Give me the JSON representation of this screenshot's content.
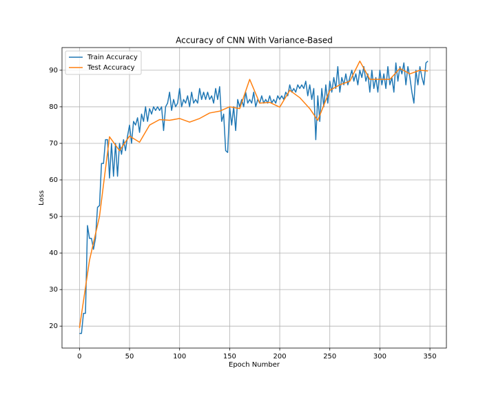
{
  "chart_data": {
    "type": "line",
    "title": "Accuracy of CNN With Variance-Based",
    "x_label": "Epoch Number",
    "y_label": "Loss",
    "xlim": [
      -17.45,
      366.45
    ],
    "ylim": [
      14,
      96.2
    ],
    "xticks": [
      0,
      50,
      100,
      150,
      200,
      250,
      300,
      350
    ],
    "yticks": [
      20,
      30,
      40,
      50,
      60,
      70,
      80,
      90
    ],
    "grid": true,
    "legend": "upper left",
    "series": [
      {
        "name": "Train Accuracy",
        "color": "#1f77b4",
        "x": [
          0,
          2,
          4,
          6,
          8,
          10,
          12,
          14,
          16,
          18,
          20,
          22,
          24,
          26,
          28,
          30,
          32,
          34,
          36,
          38,
          40,
          42,
          44,
          46,
          48,
          50,
          52,
          54,
          56,
          58,
          60,
          62,
          64,
          66,
          68,
          70,
          72,
          74,
          76,
          78,
          80,
          82,
          84,
          86,
          88,
          90,
          92,
          94,
          96,
          98,
          100,
          102,
          104,
          106,
          108,
          110,
          112,
          114,
          116,
          118,
          120,
          122,
          124,
          126,
          128,
          130,
          132,
          134,
          136,
          138,
          140,
          142,
          144,
          146,
          148,
          150,
          152,
          154,
          156,
          158,
          160,
          162,
          164,
          166,
          168,
          170,
          172,
          174,
          176,
          178,
          180,
          182,
          184,
          186,
          188,
          190,
          192,
          194,
          196,
          198,
          200,
          202,
          204,
          206,
          208,
          210,
          212,
          214,
          216,
          218,
          220,
          222,
          224,
          226,
          228,
          230,
          232,
          234,
          236,
          238,
          240,
          242,
          244,
          246,
          248,
          250,
          252,
          254,
          256,
          258,
          260,
          262,
          264,
          266,
          268,
          270,
          272,
          274,
          276,
          278,
          280,
          282,
          284,
          286,
          288,
          290,
          292,
          294,
          296,
          298,
          300,
          302,
          304,
          306,
          308,
          310,
          312,
          314,
          316,
          318,
          320,
          322,
          324,
          326,
          328,
          330,
          332,
          334,
          336,
          338,
          340,
          342,
          344,
          346,
          348
        ],
        "values": [
          18,
          18,
          23.5,
          23.5,
          47.5,
          44,
          44,
          41,
          44,
          52.5,
          53,
          64.5,
          64.5,
          71,
          71,
          60.5,
          70,
          61,
          70,
          61,
          70,
          67,
          71,
          68,
          72,
          75,
          70,
          76,
          75,
          77,
          73,
          78,
          76,
          80,
          76,
          79.5,
          78,
          80,
          79,
          80,
          79,
          80,
          73.5,
          80,
          81,
          84,
          79,
          82,
          80,
          81,
          85,
          80,
          82,
          81,
          83,
          80,
          84,
          81,
          82,
          81,
          85,
          82,
          84,
          82,
          84,
          82,
          83,
          81,
          85,
          82,
          85.5,
          76,
          78,
          68,
          67.5,
          80,
          75,
          80,
          73.5,
          82,
          80,
          82,
          80,
          84,
          81,
          82,
          81,
          84,
          80,
          82,
          81,
          83,
          81,
          82,
          81,
          83,
          81,
          82,
          81,
          83,
          82,
          83,
          82,
          84,
          83,
          86,
          84,
          85,
          84,
          86,
          85,
          86,
          85,
          87,
          83,
          86,
          82,
          85,
          71,
          83,
          76,
          85,
          80,
          86,
          81,
          87,
          84,
          88,
          85,
          91,
          84,
          88,
          86,
          89,
          86,
          88,
          90,
          87,
          89,
          86,
          90,
          88,
          91,
          87,
          89,
          84,
          90,
          85,
          88,
          84,
          90,
          86,
          89,
          85,
          91,
          86,
          88,
          84,
          92,
          87,
          91,
          89,
          92,
          86,
          91,
          88,
          84,
          81,
          90,
          86,
          91,
          88,
          86,
          92,
          92.5
        ]
      },
      {
        "name": "Test Accuracy",
        "color": "#ff7f0e",
        "x": [
          0,
          10,
          20,
          30,
          40,
          50,
          60,
          70,
          80,
          90,
          100,
          110,
          120,
          130,
          140,
          150,
          160,
          170,
          180,
          190,
          200,
          210,
          220,
          230,
          238,
          250,
          260,
          270,
          280,
          290,
          300,
          310,
          320,
          330,
          340,
          348
        ],
        "values": [
          19.5,
          38,
          50,
          71.8,
          68,
          72,
          70.3,
          75,
          76.5,
          76.3,
          76.8,
          75.8,
          76.8,
          78.3,
          78.8,
          80,
          79.5,
          87.5,
          81,
          81.2,
          79.9,
          84.5,
          82.5,
          79.5,
          76.3,
          84.5,
          86,
          87,
          92.5,
          87.5,
          87.5,
          87.5,
          90.5,
          89,
          90,
          89.8
        ]
      }
    ]
  }
}
